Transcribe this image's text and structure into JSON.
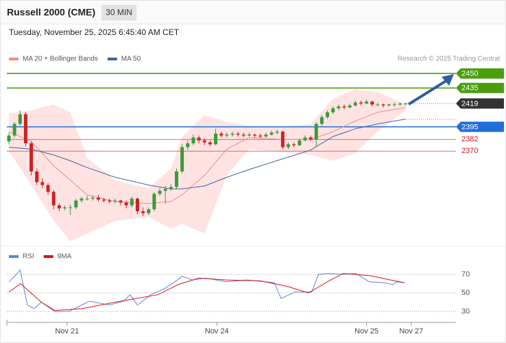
{
  "header": {
    "title": "Russell 2000 (CME)",
    "interval": "30 MIN",
    "datetime": "Tuesday, November 25, 2025 6:45:40 AM CET"
  },
  "chart_data": [
    {
      "type": "candlestick",
      "credit": "Research © 2025 Trading Central",
      "xlim": [
        0,
        80
      ],
      "ylim": [
        2275,
        2455
      ],
      "up_color": "#3a9a3a",
      "down_color": "#cc2222",
      "ohlc": [
        [
          2380,
          2389,
          2377,
          2386
        ],
        [
          2386,
          2400,
          2384,
          2398
        ],
        [
          2398,
          2412,
          2396,
          2408
        ],
        [
          2408,
          2410,
          2375,
          2378
        ],
        [
          2378,
          2380,
          2345,
          2349
        ],
        [
          2349,
          2352,
          2335,
          2338
        ],
        [
          2338,
          2342,
          2332,
          2335
        ],
        [
          2335,
          2337,
          2325,
          2328
        ],
        [
          2328,
          2330,
          2310,
          2314
        ],
        [
          2314,
          2316,
          2308,
          2311
        ],
        [
          2311,
          2314,
          2309,
          2312
        ],
        [
          2312,
          2315,
          2304,
          2312
        ],
        [
          2312,
          2321,
          2310,
          2319
        ],
        [
          2319,
          2323,
          2317,
          2321
        ],
        [
          2321,
          2324,
          2319,
          2321
        ],
        [
          2321,
          2324,
          2319,
          2322
        ],
        [
          2322,
          2325,
          2318,
          2320
        ],
        [
          2320,
          2322,
          2317,
          2319
        ],
        [
          2319,
          2321,
          2316,
          2318
        ],
        [
          2318,
          2321,
          2316,
          2319
        ],
        [
          2319,
          2320,
          2314,
          2317
        ],
        [
          2317,
          2319,
          2311,
          2314
        ],
        [
          2314,
          2323,
          2312,
          2321
        ],
        [
          2321,
          2322,
          2305,
          2308
        ],
        [
          2308,
          2312,
          2303,
          2306
        ],
        [
          2306,
          2312,
          2304,
          2310
        ],
        [
          2310,
          2328,
          2308,
          2326
        ],
        [
          2326,
          2332,
          2324,
          2329
        ],
        [
          2329,
          2334,
          2316,
          2331
        ],
        [
          2331,
          2336,
          2329,
          2333
        ],
        [
          2333,
          2352,
          2331,
          2349
        ],
        [
          2349,
          2377,
          2347,
          2374
        ],
        [
          2374,
          2381,
          2371,
          2378
        ],
        [
          2378,
          2387,
          2376,
          2384
        ],
        [
          2384,
          2386,
          2378,
          2381
        ],
        [
          2381,
          2383,
          2376,
          2379
        ],
        [
          2379,
          2381,
          2375,
          2377
        ],
        [
          2377,
          2393,
          2376,
          2388
        ],
        [
          2388,
          2390,
          2384,
          2386
        ],
        [
          2386,
          2389,
          2384,
          2387
        ],
        [
          2387,
          2390,
          2385,
          2388
        ],
        [
          2388,
          2390,
          2385,
          2387
        ],
        [
          2387,
          2389,
          2384,
          2386
        ],
        [
          2386,
          2389,
          2385,
          2387
        ],
        [
          2387,
          2388,
          2384,
          2386
        ],
        [
          2386,
          2388,
          2383,
          2385
        ],
        [
          2385,
          2389,
          2384,
          2387
        ],
        [
          2387,
          2391,
          2386,
          2389
        ],
        [
          2389,
          2392,
          2387,
          2390
        ],
        [
          2390,
          2391,
          2372,
          2374
        ],
        [
          2374,
          2379,
          2372,
          2377
        ],
        [
          2377,
          2379,
          2374,
          2376
        ],
        [
          2376,
          2383,
          2375,
          2381
        ],
        [
          2381,
          2386,
          2380,
          2384
        ],
        [
          2384,
          2386,
          2380,
          2382
        ],
        [
          2382,
          2400,
          2374,
          2398
        ],
        [
          2398,
          2407,
          2396,
          2405
        ],
        [
          2405,
          2412,
          2403,
          2410
        ],
        [
          2410,
          2416,
          2408,
          2414
        ],
        [
          2414,
          2418,
          2412,
          2416
        ],
        [
          2416,
          2418,
          2413,
          2415
        ],
        [
          2415,
          2419,
          2414,
          2417
        ],
        [
          2417,
          2422,
          2416,
          2420
        ],
        [
          2420,
          2422,
          2417,
          2419
        ],
        [
          2419,
          2423,
          2418,
          2421
        ],
        [
          2421,
          2422,
          2416,
          2418
        ],
        [
          2418,
          2420,
          2416,
          2418
        ],
        [
          2418,
          2419,
          2415,
          2417
        ],
        [
          2417,
          2419,
          2416,
          2418
        ],
        [
          2418,
          2420,
          2416,
          2418
        ],
        [
          2418,
          2420,
          2417,
          2419
        ],
        [
          2419,
          2420,
          2417,
          2419
        ]
      ],
      "bands": {
        "color": "#ffd9d9",
        "x": [
          0,
          4,
          8,
          11,
          14,
          19,
          25,
          29,
          31,
          35,
          39,
          43,
          49,
          54,
          58,
          62,
          66,
          71
        ],
        "upper": [
          2409,
          2412,
          2418,
          2410,
          2363,
          2340,
          2332,
          2352,
          2385,
          2407,
          2400,
          2396,
          2395,
          2398,
          2424,
          2434,
          2431,
          2418
        ],
        "lower": [
          2370,
          2335,
          2298,
          2277,
          2285,
          2298,
          2302,
          2290,
          2295,
          2285,
          2345,
          2372,
          2369,
          2366,
          2360,
          2368,
          2390,
          2412
        ]
      },
      "series": [
        {
          "name": "MA 20 + Bollinger Bands",
          "color": "#f08a8a",
          "x": [
            0,
            4,
            8,
            11,
            14,
            19,
            25,
            29,
            31,
            35,
            39,
            43,
            49,
            54,
            58,
            62,
            66,
            71
          ],
          "values": [
            2390,
            2380,
            2355,
            2340,
            2325,
            2318,
            2316,
            2318,
            2325,
            2345,
            2372,
            2384,
            2382,
            2382,
            2390,
            2401,
            2410,
            2415
          ]
        },
        {
          "name": "MA 50",
          "color": "#3d64a0",
          "x": [
            0,
            4,
            8,
            11,
            14,
            19,
            25,
            29,
            31,
            35,
            39,
            43,
            49,
            54,
            58,
            62,
            66,
            71
          ],
          "values": [
            2374,
            2372,
            2366,
            2360,
            2353,
            2343,
            2335,
            2331,
            2331,
            2334,
            2343,
            2351,
            2362,
            2371,
            2385,
            2393,
            2398,
            2403
          ]
        }
      ],
      "levels": [
        {
          "value": 2450,
          "color": "#4a9e0c",
          "style": "boxed"
        },
        {
          "value": 2435,
          "color": "#4a9e0c",
          "style": "boxed"
        },
        {
          "value": 2419,
          "color": "#333333",
          "style": "boxed-dotted"
        },
        {
          "value": 2395,
          "color": "#1f6fd8",
          "style": "boxed"
        },
        {
          "value": 2382,
          "color": "#cc1111",
          "style": "text"
        },
        {
          "value": 2370,
          "color": "#cc1111",
          "style": "text"
        }
      ]
    },
    {
      "type": "line",
      "xlim": [
        0,
        80
      ],
      "ylim": [
        20,
        80
      ],
      "yticks": [
        70,
        50,
        30
      ],
      "xticks": [
        {
          "value": 10.4,
          "label": "Nov 21"
        },
        {
          "value": 37.2,
          "label": "Nov 24"
        },
        {
          "value": 64.0,
          "label": "Nov 25"
        },
        {
          "value": 72.0,
          "label": "Nov 27"
        }
      ],
      "series": [
        {
          "name": "RSI",
          "color": "#5b82d6",
          "x": [
            0,
            1.5,
            2,
            3.3,
            4.5,
            5.8,
            8.2,
            10.7,
            14.4,
            18,
            20.5,
            21.7,
            23,
            25.4,
            27.9,
            29.7,
            31,
            32.8,
            35.2,
            38.9,
            42.6,
            47.5,
            48.7,
            51.2,
            54.2,
            55.4,
            57.3,
            59.7,
            62.1,
            64.5,
            67,
            68.8,
            69.4,
            70.8
          ],
          "values": [
            62,
            71,
            75,
            37,
            33,
            40,
            30,
            30,
            41,
            37,
            41,
            48,
            37,
            48,
            55,
            62,
            68,
            64,
            66,
            62,
            64,
            61,
            44,
            51,
            51,
            70,
            71,
            70,
            71,
            62,
            61,
            59,
            62,
            61
          ]
        },
        {
          "name": "9MA",
          "color": "#dd1111",
          "x": [
            0,
            2.1,
            5.8,
            8.2,
            13.1,
            19,
            26.6,
            30.3,
            34,
            38.9,
            45,
            49.9,
            53.6,
            57.3,
            59.8,
            64.7,
            68.3,
            70.8
          ],
          "values": [
            51,
            60,
            40,
            31,
            33,
            40,
            48,
            59,
            66,
            64,
            63,
            57,
            50,
            63,
            71,
            68.5,
            64,
            61
          ]
        }
      ]
    }
  ]
}
